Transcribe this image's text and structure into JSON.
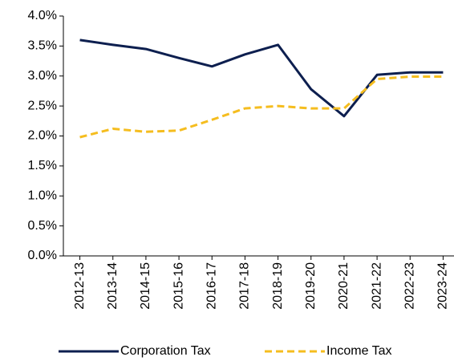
{
  "chart_data": {
    "type": "line",
    "categories": [
      "2012-13",
      "2013-14",
      "2014-15",
      "2015-16",
      "2016-17",
      "2017-18",
      "2018-19",
      "2019-20",
      "2020-21",
      "2021-22",
      "2022-23",
      "2023-24"
    ],
    "series": [
      {
        "name": "Corporation Tax",
        "color": "#0d1f4f",
        "dash": false,
        "values": [
          3.6,
          3.52,
          3.45,
          3.3,
          3.16,
          3.36,
          3.52,
          2.78,
          2.33,
          3.02,
          3.06,
          3.06
        ]
      },
      {
        "name": "Income Tax",
        "color": "#f5bd1f",
        "dash": true,
        "values": [
          1.98,
          2.12,
          2.07,
          2.09,
          2.27,
          2.46,
          2.5,
          2.46,
          2.46,
          2.95,
          2.99,
          2.99
        ]
      }
    ],
    "ylim": [
      0,
      4
    ],
    "yticks": [
      {
        "value": 0,
        "label": "0.0%"
      },
      {
        "value": 0.5,
        "label": "0.5%"
      },
      {
        "value": 1,
        "label": "1.0%"
      },
      {
        "value": 1.5,
        "label": "1.5%"
      },
      {
        "value": 2,
        "label": "2.0%"
      },
      {
        "value": 2.5,
        "label": "2.5%"
      },
      {
        "value": 3,
        "label": "3.0%"
      },
      {
        "value": 3.5,
        "label": "3.5%"
      },
      {
        "value": 4,
        "label": "4.0%"
      }
    ],
    "grid": false,
    "legend": "bottom"
  }
}
